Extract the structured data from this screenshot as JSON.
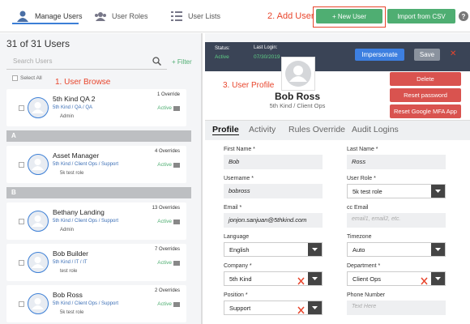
{
  "nav": {
    "tabs": [
      "Manage Users",
      "User Roles",
      "User Lists"
    ],
    "annotation": "2. Add User",
    "new_user": "+ New User",
    "import_csv": "Import from CSV",
    "help": "?"
  },
  "browse": {
    "count": "31 of 31 Users",
    "search_placeholder": "Search Users",
    "filter": "+ Filter",
    "select_all": "Select All",
    "annotation": "1. User Browse",
    "items": [
      {
        "type": "user",
        "name": "5th Kind QA 2",
        "path": "5th Kind / QA / QA",
        "role": "Admin",
        "overrides": "1 Override",
        "status": "Active"
      },
      {
        "type": "section",
        "label": "A"
      },
      {
        "type": "user",
        "name": "Asset Manager",
        "path": "5th Kind / Client Ops / Support",
        "role": "5k test role",
        "overrides": "4 Overrides",
        "status": "Active"
      },
      {
        "type": "section",
        "label": "B"
      },
      {
        "type": "user",
        "name": "Bethany Landing",
        "path": "5th Kind / Client Ops / Support",
        "role": "Admin",
        "overrides": "13 Overrides",
        "status": "Active"
      },
      {
        "type": "user",
        "name": "Bob Builder",
        "path": "5th Kind / IT / IT",
        "role": "test role",
        "overrides": "7 Overrides",
        "status": "Active"
      },
      {
        "type": "user",
        "name": "Bob Ross",
        "path": "5th Kind / Client Ops / Support",
        "role": "5k test role",
        "overrides": "2 Overrides",
        "status": "Active"
      }
    ]
  },
  "profile": {
    "status_label": "Status:",
    "status": "Active",
    "last_login_label": "Last Login:",
    "last_login": "07/30/2019",
    "impersonate": "Impersonate",
    "save": "Save",
    "close": "✕",
    "annotation": "3. User Profile",
    "name": "Bob Ross",
    "org": "5th Kind / Client Ops",
    "actions": [
      "Delete",
      "Reset password",
      "Reset Google MFA App"
    ],
    "tabs": [
      "Profile",
      "Activity",
      "Rules Override",
      "Audit Logins"
    ],
    "fields": [
      {
        "label": "First Name *",
        "value": "Bob"
      },
      {
        "label": "Last Name *",
        "value": "Ross"
      },
      {
        "label": "Username *",
        "value": "bobross"
      },
      {
        "label": "User Role *",
        "value": "5k test role",
        "kind": "select"
      },
      {
        "label": "Email *",
        "value": "jonjon.sanjuan@5thkind.com"
      },
      {
        "label": "cc Email",
        "placeholder": "email1, email2, etc."
      },
      {
        "label": "Language",
        "value": "English",
        "kind": "select"
      },
      {
        "label": "Timezone",
        "value": "Auto",
        "kind": "select"
      },
      {
        "label": "Company *",
        "value": "5th Kind",
        "kind": "select",
        "clearable": true
      },
      {
        "label": "Department *",
        "value": "Client Ops",
        "kind": "select",
        "clearable": true
      },
      {
        "label": "Position *",
        "value": "Support",
        "kind": "select",
        "clearable": true
      },
      {
        "label": "Phone Number",
        "placeholder": "Text Here"
      }
    ]
  }
}
